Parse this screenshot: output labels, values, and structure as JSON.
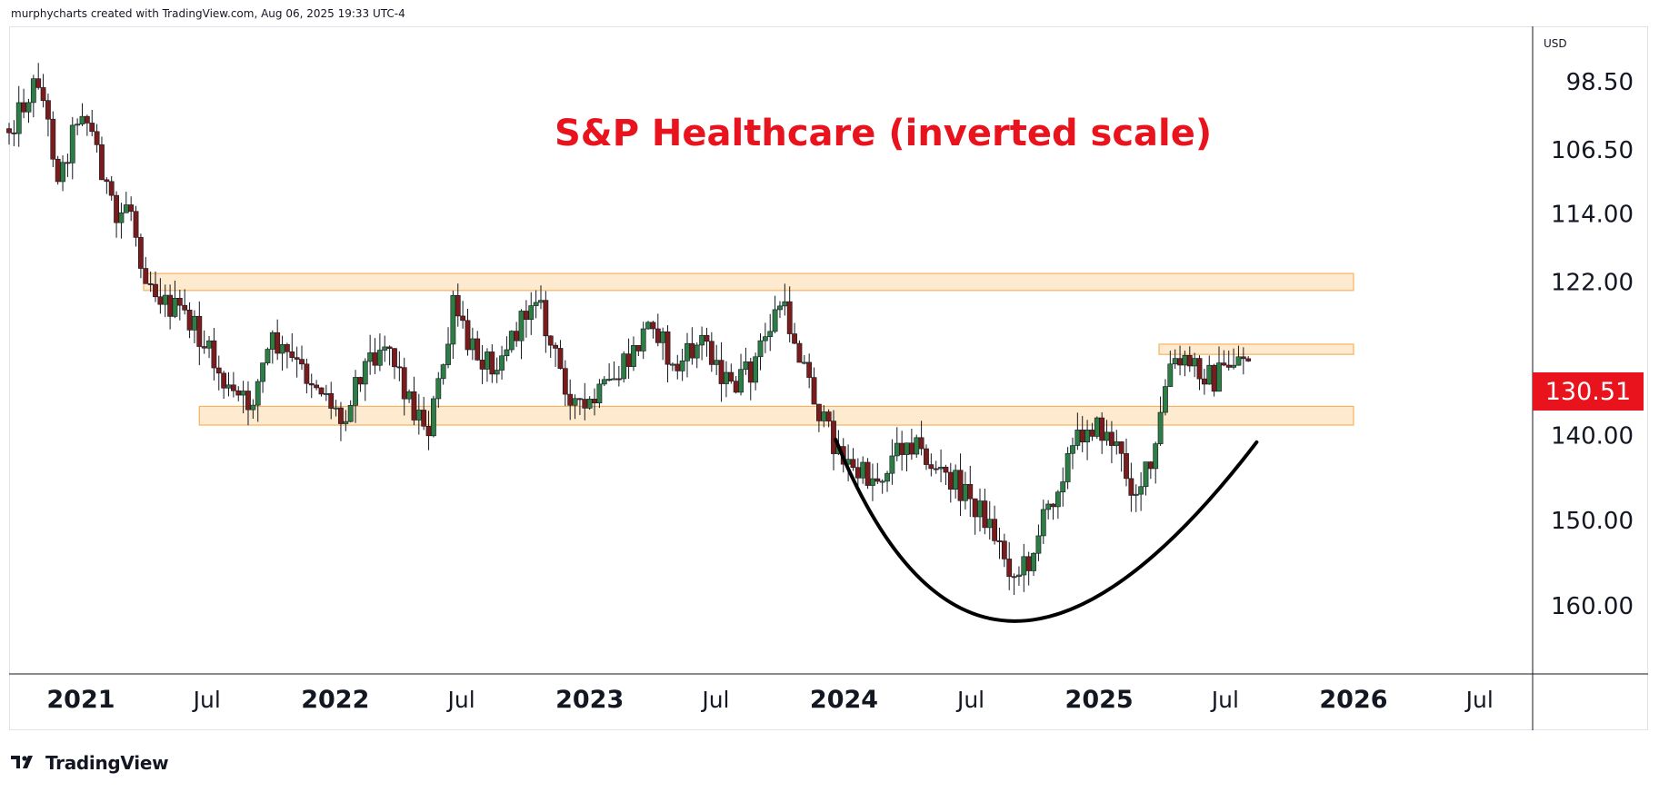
{
  "attribution": "murphycharts created with TradingView.com, Aug 06, 2025 19:33 UTC-4",
  "brand": {
    "name": "TradingView",
    "icon": "tradingview-logo-icon"
  },
  "currency": "USD",
  "last_price": "130.51",
  "colors": {
    "up": "#2e7d45",
    "down": "#7b1c1c",
    "title": "#e8131d",
    "zone_fill": "#fde3bf",
    "zone_stroke": "#f7b25f",
    "arc": "#000000"
  },
  "chart_data": {
    "type": "candlestick",
    "title": "S&P Healthcare (inverted scale)",
    "y_axis": {
      "scale": "inverted",
      "range": [
        92,
        168
      ],
      "ticks": [
        "98.50",
        "106.50",
        "114.00",
        "122.00",
        "140.00",
        "150.00",
        "160.00"
      ]
    },
    "x_axis": {
      "range": [
        "2020-09-20",
        "2026-09-15"
      ],
      "ticks": [
        {
          "date": "2021-01-01",
          "label": "2021",
          "bold": true
        },
        {
          "date": "2021-07-01",
          "label": "Jul",
          "bold": false
        },
        {
          "date": "2022-01-01",
          "label": "2022",
          "bold": true
        },
        {
          "date": "2022-07-01",
          "label": "Jul",
          "bold": false
        },
        {
          "date": "2023-01-01",
          "label": "2023",
          "bold": true
        },
        {
          "date": "2023-07-01",
          "label": "Jul",
          "bold": false
        },
        {
          "date": "2024-01-01",
          "label": "2024",
          "bold": true
        },
        {
          "date": "2024-07-01",
          "label": "Jul",
          "bold": false
        },
        {
          "date": "2025-01-01",
          "label": "2025",
          "bold": true
        },
        {
          "date": "2025-07-01",
          "label": "Jul",
          "bold": false
        },
        {
          "date": "2026-01-01",
          "label": "2026",
          "bold": true
        },
        {
          "date": "2026-07-01",
          "label": "Jul",
          "bold": false
        }
      ]
    },
    "zones": [
      {
        "from": "2021-04-01",
        "to": "2026-01-01",
        "price_low": 121,
        "price_high": 123
      },
      {
        "from": "2021-06-20",
        "to": "2026-01-01",
        "price_low": 136.6,
        "price_high": 138.8
      },
      {
        "from": "2025-03-28",
        "to": "2026-01-01",
        "price_low": 129.3,
        "price_high": 130.5
      }
    ],
    "arc": {
      "from": "2023-12-20",
      "apex": "2024-09-01",
      "to": "2025-08-15",
      "start_price": 140.5,
      "apex_price": 161.8,
      "end_price": 140.8
    },
    "weekly_closes": [
      {
        "x": "2020-09-20",
        "c": 104.0
      },
      {
        "x": "2020-11-01",
        "c": 98.0
      },
      {
        "x": "2020-12-01",
        "c": 110.0
      },
      {
        "x": "2021-01-01",
        "c": 101.0
      },
      {
        "x": "2021-01-25",
        "c": 106.5
      },
      {
        "x": "2021-02-20",
        "c": 115.5
      },
      {
        "x": "2021-03-10",
        "c": 112.0
      },
      {
        "x": "2021-04-01",
        "c": 120.5
      },
      {
        "x": "2021-05-01",
        "c": 124.5
      },
      {
        "x": "2021-06-01",
        "c": 126.0
      },
      {
        "x": "2021-07-01",
        "c": 130.0
      },
      {
        "x": "2021-08-01",
        "c": 135.0
      },
      {
        "x": "2021-09-01",
        "c": 136.5
      },
      {
        "x": "2021-10-01",
        "c": 129.0
      },
      {
        "x": "2021-11-15",
        "c": 132.5
      },
      {
        "x": "2021-12-15",
        "c": 134.5
      },
      {
        "x": "2022-01-10",
        "c": 138.5
      },
      {
        "x": "2022-02-01",
        "c": 133.0
      },
      {
        "x": "2022-03-15",
        "c": 128.5
      },
      {
        "x": "2022-04-20",
        "c": 136.5
      },
      {
        "x": "2022-05-15",
        "c": 139.0
      },
      {
        "x": "2022-06-10",
        "c": 130.0
      },
      {
        "x": "2022-06-20",
        "c": 124.5
      },
      {
        "x": "2022-07-10",
        "c": 129.5
      },
      {
        "x": "2022-08-15",
        "c": 131.5
      },
      {
        "x": "2022-09-25",
        "c": 127.0
      },
      {
        "x": "2022-10-15",
        "c": 122.5
      },
      {
        "x": "2022-11-01",
        "c": 128.5
      },
      {
        "x": "2022-11-25",
        "c": 133.5
      },
      {
        "x": "2022-12-20",
        "c": 137.5
      },
      {
        "x": "2023-01-25",
        "c": 134.5
      },
      {
        "x": "2023-03-01",
        "c": 131.0
      },
      {
        "x": "2023-04-01",
        "c": 126.0
      },
      {
        "x": "2023-05-01",
        "c": 132.5
      },
      {
        "x": "2023-06-15",
        "c": 128.5
      },
      {
        "x": "2023-07-20",
        "c": 134.5
      },
      {
        "x": "2023-08-20",
        "c": 132.5
      },
      {
        "x": "2023-10-01",
        "c": 124.5
      },
      {
        "x": "2023-10-25",
        "c": 129.0
      },
      {
        "x": "2023-12-01",
        "c": 138.5
      },
      {
        "x": "2024-01-15",
        "c": 144.5
      },
      {
        "x": "2024-02-20",
        "c": 145.0
      },
      {
        "x": "2024-04-01",
        "c": 140.0
      },
      {
        "x": "2024-05-10",
        "c": 144.0
      },
      {
        "x": "2024-06-15",
        "c": 146.0
      },
      {
        "x": "2024-07-25",
        "c": 150.0
      },
      {
        "x": "2024-09-01",
        "c": 156.5
      },
      {
        "x": "2024-09-20",
        "c": 155.0
      },
      {
        "x": "2024-10-20",
        "c": 148.5
      },
      {
        "x": "2024-11-15",
        "c": 143.0
      },
      {
        "x": "2024-12-15",
        "c": 138.5
      },
      {
        "x": "2025-01-20",
        "c": 140.5
      },
      {
        "x": "2025-02-20",
        "c": 146.5
      },
      {
        "x": "2025-03-20",
        "c": 143.5
      },
      {
        "x": "2025-04-10",
        "c": 132.0
      },
      {
        "x": "2025-05-15",
        "c": 131.5
      },
      {
        "x": "2025-06-15",
        "c": 133.5
      },
      {
        "x": "2025-07-15",
        "c": 131.0
      },
      {
        "x": "2025-08-05",
        "c": 130.51
      }
    ]
  }
}
